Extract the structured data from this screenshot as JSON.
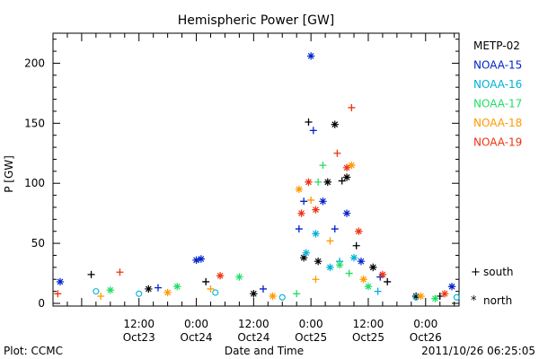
{
  "chart_data": {
    "type": "scatter",
    "title": "Hemispheric Power [GW]",
    "ylabel": "P [GW]",
    "xlabel": "Date and Time",
    "ylim": [
      0,
      225
    ],
    "x_range": [
      "2011-10-22T18:00",
      "2011-10-26T07:00"
    ],
    "y_ticks": [
      0,
      50,
      100,
      150,
      200
    ],
    "x_ticks": [
      {
        "time": "2011-10-23T12:00",
        "line1": "12:00",
        "line2": "Oct23"
      },
      {
        "time": "2011-10-24T00:00",
        "line1": "0:00",
        "line2": "Oct24"
      },
      {
        "time": "2011-10-24T12:00",
        "line1": "12:00",
        "line2": "Oct24"
      },
      {
        "time": "2011-10-25T00:00",
        "line1": "0:00",
        "line2": "Oct25"
      },
      {
        "time": "2011-10-25T12:00",
        "line1": "12:00",
        "line2": "Oct25"
      },
      {
        "time": "2011-10-26T00:00",
        "line1": "0:00",
        "line2": "Oct26"
      }
    ],
    "legend_position": "right",
    "series": [
      {
        "name": "METP-02",
        "color": "#000000",
        "points": [
          {
            "t": "2011-10-23T02:00",
            "y": 24,
            "m": "+"
          },
          {
            "t": "2011-10-23T14:00",
            "y": 12,
            "m": "*"
          },
          {
            "t": "2011-10-24T02:00",
            "y": 18,
            "m": "+"
          },
          {
            "t": "2011-10-24T12:00",
            "y": 8,
            "m": "*"
          },
          {
            "t": "2011-10-24T22:30",
            "y": 38,
            "m": "*"
          },
          {
            "t": "2011-10-24T23:30",
            "y": 151,
            "m": "+"
          },
          {
            "t": "2011-10-25T01:30",
            "y": 35,
            "m": "*"
          },
          {
            "t": "2011-10-25T03:30",
            "y": 101,
            "m": "*"
          },
          {
            "t": "2011-10-25T05:00",
            "y": 149,
            "m": "*"
          },
          {
            "t": "2011-10-25T06:30",
            "y": 102,
            "m": "+"
          },
          {
            "t": "2011-10-25T07:30",
            "y": 105,
            "m": "*"
          },
          {
            "t": "2011-10-25T09:30",
            "y": 48,
            "m": "+"
          },
          {
            "t": "2011-10-25T13:00",
            "y": 30,
            "m": "*"
          },
          {
            "t": "2011-10-25T16:00",
            "y": 18,
            "m": "+"
          },
          {
            "t": "2011-10-25T22:00",
            "y": 6,
            "m": "*"
          },
          {
            "t": "2011-10-26T03:00",
            "y": 6,
            "m": "+"
          }
        ]
      },
      {
        "name": "NOAA-15",
        "color": "#0022cc",
        "points": [
          {
            "t": "2011-10-22T19:30",
            "y": 18,
            "m": "*"
          },
          {
            "t": "2011-10-23T16:00",
            "y": 13,
            "m": "+"
          },
          {
            "t": "2011-10-24T00:00",
            "y": 36,
            "m": "*"
          },
          {
            "t": "2011-10-24T01:00",
            "y": 37,
            "m": "*"
          },
          {
            "t": "2011-10-24T14:00",
            "y": 12,
            "m": "+"
          },
          {
            "t": "2011-10-24T21:30",
            "y": 62,
            "m": "+"
          },
          {
            "t": "2011-10-25T00:00",
            "y": 206,
            "m": "*"
          },
          {
            "t": "2011-10-25T00:30",
            "y": 144,
            "m": "+"
          },
          {
            "t": "2011-10-24T22:30",
            "y": 85,
            "m": "+"
          },
          {
            "t": "2011-10-25T02:30",
            "y": 85,
            "m": "*"
          },
          {
            "t": "2011-10-25T05:00",
            "y": 62,
            "m": "+"
          },
          {
            "t": "2011-10-25T07:30",
            "y": 75,
            "m": "*"
          },
          {
            "t": "2011-10-25T10:30",
            "y": 35,
            "m": "*"
          },
          {
            "t": "2011-10-25T14:30",
            "y": 22,
            "m": "+"
          },
          {
            "t": "2011-10-26T05:30",
            "y": 14,
            "m": "*"
          }
        ]
      },
      {
        "name": "NOAA-16",
        "color": "#00b0d8",
        "points": [
          {
            "t": "2011-10-23T03:00",
            "y": 10,
            "m": "o"
          },
          {
            "t": "2011-10-23T12:00",
            "y": 8,
            "m": "o"
          },
          {
            "t": "2011-10-24T04:00",
            "y": 9,
            "m": "o"
          },
          {
            "t": "2011-10-24T18:00",
            "y": 5,
            "m": "o"
          },
          {
            "t": "2011-10-24T23:00",
            "y": 42,
            "m": "*"
          },
          {
            "t": "2011-10-25T01:00",
            "y": 58,
            "m": "*"
          },
          {
            "t": "2011-10-25T04:00",
            "y": 30,
            "m": "*"
          },
          {
            "t": "2011-10-25T06:00",
            "y": 35,
            "m": "+"
          },
          {
            "t": "2011-10-25T09:00",
            "y": 38,
            "m": "*"
          },
          {
            "t": "2011-10-25T14:00",
            "y": 10,
            "m": "+"
          },
          {
            "t": "2011-10-25T22:00",
            "y": 5,
            "m": "o"
          },
          {
            "t": "2011-10-26T06:30",
            "y": 5,
            "m": "o"
          }
        ]
      },
      {
        "name": "NOAA-17",
        "color": "#22dd66",
        "points": [
          {
            "t": "2011-10-23T06:00",
            "y": 11,
            "m": "*"
          },
          {
            "t": "2011-10-23T20:00",
            "y": 14,
            "m": "*"
          },
          {
            "t": "2011-10-24T09:00",
            "y": 22,
            "m": "*"
          },
          {
            "t": "2011-10-24T21:00",
            "y": 8,
            "m": "+"
          },
          {
            "t": "2011-10-25T01:30",
            "y": 101,
            "m": "+"
          },
          {
            "t": "2011-10-25T02:30",
            "y": 115,
            "m": "+"
          },
          {
            "t": "2011-10-25T06:00",
            "y": 32,
            "m": "*"
          },
          {
            "t": "2011-10-25T08:00",
            "y": 25,
            "m": "+"
          },
          {
            "t": "2011-10-25T12:00",
            "y": 14,
            "m": "*"
          },
          {
            "t": "2011-10-26T02:00",
            "y": 4,
            "m": "*"
          }
        ]
      },
      {
        "name": "NOAA-18",
        "color": "#ff9900",
        "points": [
          {
            "t": "2011-10-23T04:00",
            "y": 6,
            "m": "+"
          },
          {
            "t": "2011-10-23T18:00",
            "y": 9,
            "m": "*"
          },
          {
            "t": "2011-10-24T03:00",
            "y": 12,
            "m": "+"
          },
          {
            "t": "2011-10-24T16:00",
            "y": 6,
            "m": "*"
          },
          {
            "t": "2011-10-24T21:30",
            "y": 95,
            "m": "*"
          },
          {
            "t": "2011-10-25T00:00",
            "y": 86,
            "m": "+"
          },
          {
            "t": "2011-10-25T01:00",
            "y": 20,
            "m": "+"
          },
          {
            "t": "2011-10-25T04:00",
            "y": 52,
            "m": "+"
          },
          {
            "t": "2011-10-25T08:30",
            "y": 115,
            "m": "*"
          },
          {
            "t": "2011-10-25T11:00",
            "y": 20,
            "m": "*"
          },
          {
            "t": "2011-10-25T23:00",
            "y": 6,
            "m": "*"
          }
        ]
      },
      {
        "name": "NOAA-19",
        "color": "#ee3311",
        "points": [
          {
            "t": "2011-10-22T19:00",
            "y": 8,
            "m": "+"
          },
          {
            "t": "2011-10-23T08:00",
            "y": 26,
            "m": "+"
          },
          {
            "t": "2011-10-24T05:00",
            "y": 23,
            "m": "*"
          },
          {
            "t": "2011-10-24T22:00",
            "y": 75,
            "m": "*"
          },
          {
            "t": "2011-10-24T23:30",
            "y": 101,
            "m": "*"
          },
          {
            "t": "2011-10-25T01:00",
            "y": 78,
            "m": "*"
          },
          {
            "t": "2011-10-25T05:30",
            "y": 125,
            "m": "+"
          },
          {
            "t": "2011-10-25T07:30",
            "y": 113,
            "m": "*"
          },
          {
            "t": "2011-10-25T08:30",
            "y": 163,
            "m": "+"
          },
          {
            "t": "2011-10-25T10:00",
            "y": 60,
            "m": "*"
          },
          {
            "t": "2011-10-25T15:00",
            "y": 24,
            "m": "*"
          },
          {
            "t": "2011-10-26T04:00",
            "y": 8,
            "m": "*"
          }
        ]
      }
    ],
    "marker_legend": [
      {
        "symbol": "+",
        "label": "south"
      },
      {
        "symbol": "*",
        "label": "north"
      }
    ]
  },
  "footer": {
    "left": "Plot: CCMC",
    "right": "2011/10/26 06:25:05"
  }
}
